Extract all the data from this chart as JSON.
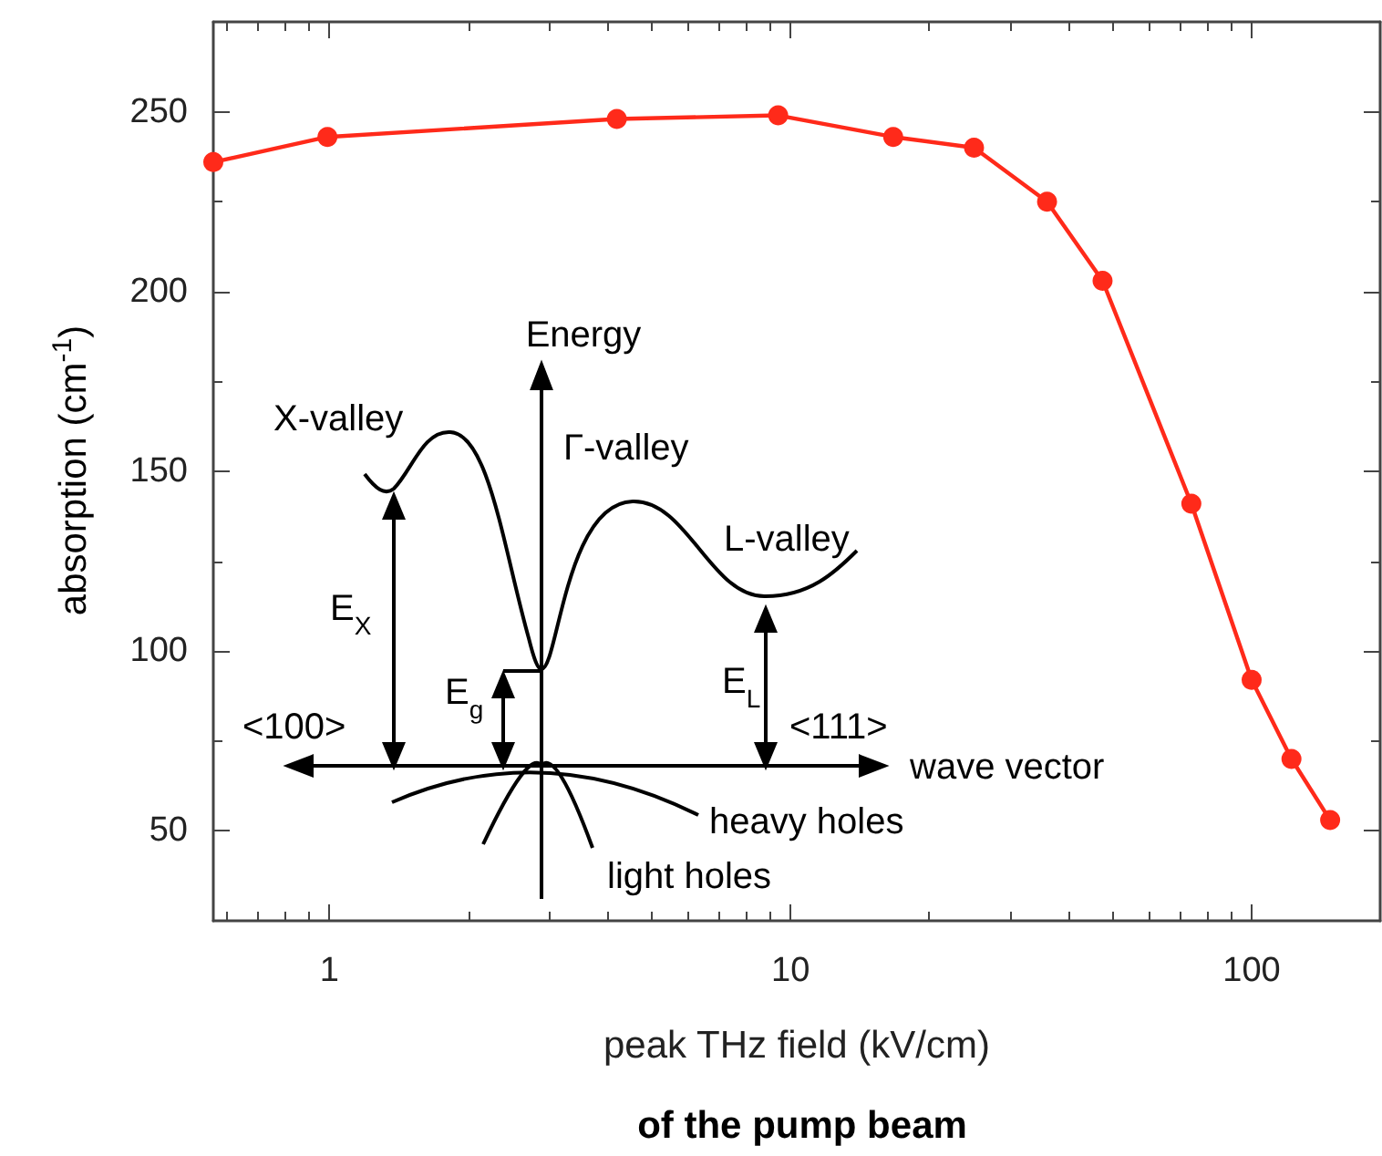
{
  "chart_data": {
    "type": "line",
    "xlabel": "peak THz field (kV/cm)",
    "ylabel": "absorption (cm$^{-1}$)",
    "x": [
      0.56,
      0.99,
      4.2,
      9.4,
      16.7,
      25,
      36,
      47.5,
      74,
      100,
      122,
      148
    ],
    "series": [
      {
        "color": "#ff2a1a",
        "values": [
          236,
          243,
          248,
          249,
          243,
          240,
          225,
          203,
          141,
          92,
          70,
          53
        ]
      }
    ],
    "xlim": [
      0.56,
      190
    ],
    "ylim": [
      25,
      275
    ],
    "log": "x",
    "xticks": [
      1,
      10,
      100
    ],
    "yticks": [
      50,
      100,
      150,
      200,
      250
    ],
    "grid": false,
    "marker": "circle",
    "line_style": "solid",
    "annotations": [
      "Energy",
      "X-valley",
      "Γ-valley",
      "L-valley",
      "E$_{X}$",
      "E$_{g}$",
      "E$_{L}$",
      "<100>",
      "<111>",
      "wave vector",
      "heavy holes",
      "light holes",
      "of the pump beam"
    ]
  }
}
